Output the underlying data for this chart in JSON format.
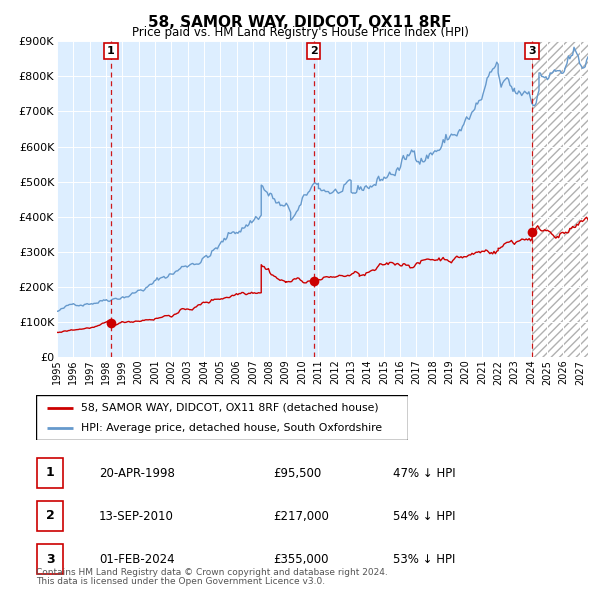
{
  "title": "58, SAMOR WAY, DIDCOT, OX11 8RF",
  "subtitle": "Price paid vs. HM Land Registry's House Price Index (HPI)",
  "transactions": [
    {
      "num": 1,
      "date": "20-APR-1998",
      "price": 95500,
      "pct": "47%",
      "year_x": 1998.3
    },
    {
      "num": 2,
      "date": "13-SEP-2010",
      "price": 217000,
      "pct": "54%",
      "year_x": 2010.7
    },
    {
      "num": 3,
      "date": "01-FEB-2024",
      "price": 355000,
      "pct": "53%",
      "year_x": 2024.08
    }
  ],
  "legend_label_red": "58, SAMOR WAY, DIDCOT, OX11 8RF (detached house)",
  "legend_label_blue": "HPI: Average price, detached house, South Oxfordshire",
  "footnote1": "Contains HM Land Registry data © Crown copyright and database right 2024.",
  "footnote2": "This data is licensed under the Open Government Licence v3.0.",
  "red_color": "#cc0000",
  "blue_color": "#6699cc",
  "bg_color": "#ddeeff",
  "ylim": [
    0,
    900000
  ],
  "xlim_start": 1995.0,
  "xlim_end": 2027.5,
  "xticks": [
    1995,
    1996,
    1997,
    1998,
    1999,
    2000,
    2001,
    2002,
    2003,
    2004,
    2005,
    2006,
    2007,
    2008,
    2009,
    2010,
    2011,
    2012,
    2013,
    2014,
    2015,
    2016,
    2017,
    2018,
    2019,
    2020,
    2021,
    2022,
    2023,
    2024,
    2025,
    2026,
    2027
  ],
  "ytick_vals": [
    0,
    100000,
    200000,
    300000,
    400000,
    500000,
    600000,
    700000,
    800000,
    900000
  ],
  "ytick_labels": [
    "£0",
    "£100K",
    "£200K",
    "£300K",
    "£400K",
    "£500K",
    "£600K",
    "£700K",
    "£800K",
    "£900K"
  ]
}
